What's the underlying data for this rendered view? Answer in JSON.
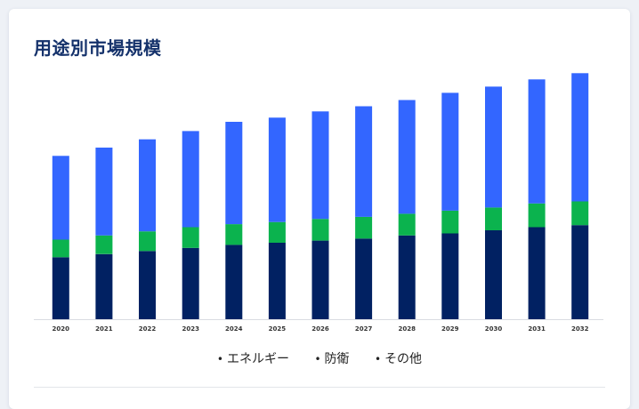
{
  "card": {
    "title": "用途別市場規模"
  },
  "colors": {
    "title": "#15326b",
    "axis": "#d9dce2"
  },
  "chart_data": {
    "type": "bar",
    "stacked": true,
    "categories": [
      "2020",
      "2021",
      "2022",
      "2023",
      "2024",
      "2025",
      "2026",
      "2027",
      "2028",
      "2029",
      "2030",
      "2031",
      "2032"
    ],
    "series": [
      {
        "name": "その他",
        "color": "#012162",
        "values": [
          60,
          63,
          66,
          69,
          72,
          74,
          76,
          78,
          81,
          83,
          86,
          89,
          91
        ]
      },
      {
        "name": "防衛",
        "color": "#0bb34e",
        "values": [
          17,
          18,
          19,
          20,
          20,
          20,
          21,
          21,
          21,
          22,
          22,
          23,
          23
        ]
      },
      {
        "name": "エネルギー",
        "color": "#3366ff",
        "values": [
          81,
          85,
          89,
          93,
          99,
          101,
          104,
          107,
          110,
          114,
          117,
          120,
          124
        ]
      }
    ],
    "legend_order": [
      "エネルギー",
      "防衛",
      "その他"
    ],
    "ymax": 240,
    "y_axis_visible": false,
    "grid": false,
    "legend_position": "bottom"
  }
}
